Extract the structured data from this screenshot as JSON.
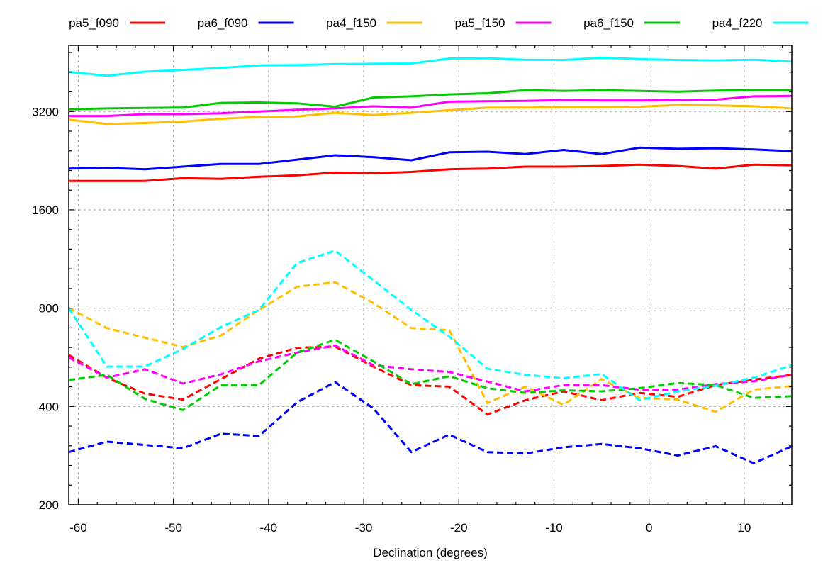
{
  "chart_data": {
    "type": "line",
    "xlabel": "Declination (degrees)",
    "ylabel": "",
    "xlim": [
      -61,
      15
    ],
    "ylim": [
      200,
      5100
    ],
    "y_scale": "log2",
    "x_ticks": [
      -60,
      -50,
      -40,
      -30,
      -20,
      -10,
      0,
      10
    ],
    "x_tick_labels": [
      "-60",
      "-50",
      "-40",
      "-30",
      "-20",
      "-10",
      "0",
      "10"
    ],
    "y_ticks": [
      200,
      400,
      800,
      1600,
      3200
    ],
    "y_tick_labels": [
      "200",
      "400",
      "800",
      "1600",
      "3200"
    ],
    "grid": true,
    "legend_position": "top",
    "x": [
      -61,
      -57,
      -53,
      -49,
      -45,
      -41,
      -37,
      -33,
      -29,
      -25,
      -21,
      -17,
      -13,
      -9,
      -5,
      -1,
      3,
      7,
      11,
      15
    ],
    "series": [
      {
        "name": "pa5_f090",
        "color": "#ff0000",
        "style": "solid",
        "values": [
          1960,
          1960,
          1960,
          2000,
          1990,
          2020,
          2040,
          2080,
          2070,
          2090,
          2130,
          2140,
          2170,
          2170,
          2180,
          2200,
          2180,
          2140,
          2200,
          2190
        ]
      },
      {
        "name": "pa6_f090",
        "color": "#0000ff",
        "style": "solid",
        "values": [
          2140,
          2150,
          2130,
          2170,
          2210,
          2210,
          2280,
          2350,
          2320,
          2270,
          2400,
          2410,
          2370,
          2440,
          2370,
          2480,
          2460,
          2470,
          2450,
          2420
        ]
      },
      {
        "name": "pa4_f150",
        "color": "#ffbf00",
        "style": "solid",
        "values": [
          3020,
          2930,
          2950,
          2980,
          3040,
          3080,
          3090,
          3170,
          3120,
          3170,
          3230,
          3290,
          3290,
          3300,
          3300,
          3310,
          3350,
          3340,
          3320,
          3270
        ]
      },
      {
        "name": "pa5_f150",
        "color": "#ff00ff",
        "style": "solid",
        "values": [
          3100,
          3100,
          3140,
          3140,
          3160,
          3200,
          3240,
          3270,
          3320,
          3290,
          3430,
          3440,
          3450,
          3470,
          3460,
          3460,
          3470,
          3480,
          3560,
          3570
        ]
      },
      {
        "name": "pa6_f150",
        "color": "#00cc00",
        "style": "solid",
        "values": [
          3250,
          3270,
          3280,
          3290,
          3400,
          3410,
          3390,
          3310,
          3530,
          3560,
          3610,
          3640,
          3720,
          3700,
          3720,
          3700,
          3680,
          3710,
          3720,
          3720
        ]
      },
      {
        "name": "pa4_f220",
        "color": "#00ffff",
        "style": "solid",
        "values": [
          4230,
          4120,
          4240,
          4290,
          4350,
          4430,
          4440,
          4470,
          4480,
          4490,
          4650,
          4660,
          4610,
          4600,
          4680,
          4630,
          4600,
          4590,
          4610,
          4550
        ]
      },
      {
        "name": "",
        "color": "#ff0000",
        "style": "dashed",
        "values": [
          575,
          490,
          438,
          420,
          485,
          560,
          605,
          610,
          530,
          465,
          460,
          378,
          418,
          445,
          418,
          440,
          428,
          465,
          483,
          500
        ]
      },
      {
        "name": "",
        "color": "#0000ff",
        "style": "dashed",
        "values": [
          290,
          312,
          305,
          298,
          330,
          325,
          412,
          475,
          395,
          290,
          328,
          290,
          287,
          300,
          307,
          298,
          283,
          302,
          268,
          302
        ]
      },
      {
        "name": "",
        "color": "#ffbf00",
        "style": "dashed",
        "values": [
          800,
          695,
          650,
          608,
          660,
          790,
          930,
          960,
          830,
          695,
          685,
          410,
          460,
          405,
          485,
          425,
          420,
          385,
          450,
          462
        ]
      },
      {
        "name": "",
        "color": "#ff00ff",
        "style": "dashed",
        "values": [
          565,
          490,
          520,
          470,
          502,
          550,
          585,
          615,
          535,
          520,
          510,
          477,
          445,
          465,
          465,
          450,
          450,
          468,
          478,
          500
        ]
      },
      {
        "name": "",
        "color": "#00cc00",
        "style": "dashed",
        "values": [
          482,
          500,
          422,
          390,
          465,
          465,
          585,
          640,
          550,
          468,
          495,
          455,
          440,
          448,
          445,
          455,
          472,
          465,
          425,
          430
        ]
      },
      {
        "name": "",
        "color": "#00ffff",
        "style": "dashed",
        "values": [
          800,
          530,
          530,
          600,
          700,
          790,
          1100,
          1200,
          975,
          790,
          655,
          522,
          500,
          488,
          503,
          418,
          445,
          463,
          490,
          535
        ]
      }
    ]
  }
}
